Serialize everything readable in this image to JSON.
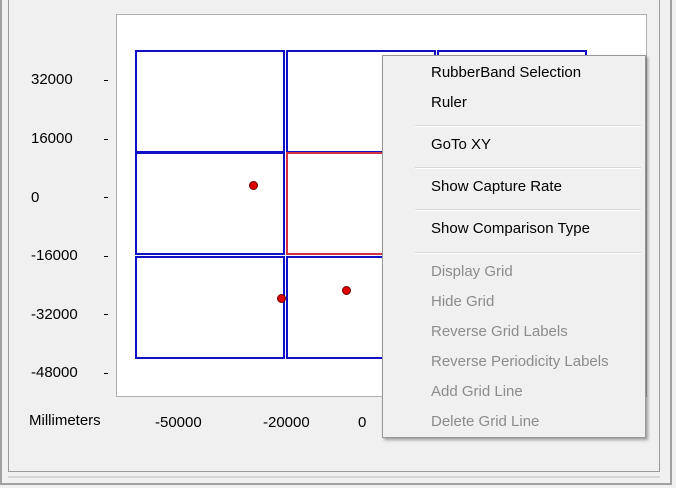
{
  "y_axis": {
    "ticks": [
      "32000",
      "16000",
      "0",
      "-16000",
      "-32000",
      "-48000"
    ]
  },
  "x_axis": {
    "unit_label": "Millimeters",
    "ticks": [
      "-50000",
      "-20000",
      "0"
    ]
  },
  "grid": {
    "rows": 3,
    "columns": 3,
    "selected_cell": "row 2, column 2",
    "cell_border_color": "#1010c8",
    "selected_border_color": "#d03040"
  },
  "points_color": "#e00000",
  "context_menu": {
    "groups": [
      [
        {
          "label": "RubberBand Selection",
          "enabled": true
        },
        {
          "label": "Ruler",
          "enabled": true
        }
      ],
      [
        {
          "label": "GoTo XY",
          "enabled": true
        }
      ],
      [
        {
          "label": "Show Capture Rate",
          "enabled": true
        }
      ],
      [
        {
          "label": "Show Comparison Type",
          "enabled": true
        }
      ],
      [
        {
          "label": "Display Grid",
          "enabled": false
        },
        {
          "label": "Hide Grid",
          "enabled": false
        },
        {
          "label": "Reverse Grid Labels",
          "enabled": false
        },
        {
          "label": "Reverse Periodicity Labels",
          "enabled": false
        },
        {
          "label": "Add Grid Line",
          "enabled": false
        },
        {
          "label": "Delete Grid Line",
          "enabled": false
        }
      ]
    ]
  }
}
